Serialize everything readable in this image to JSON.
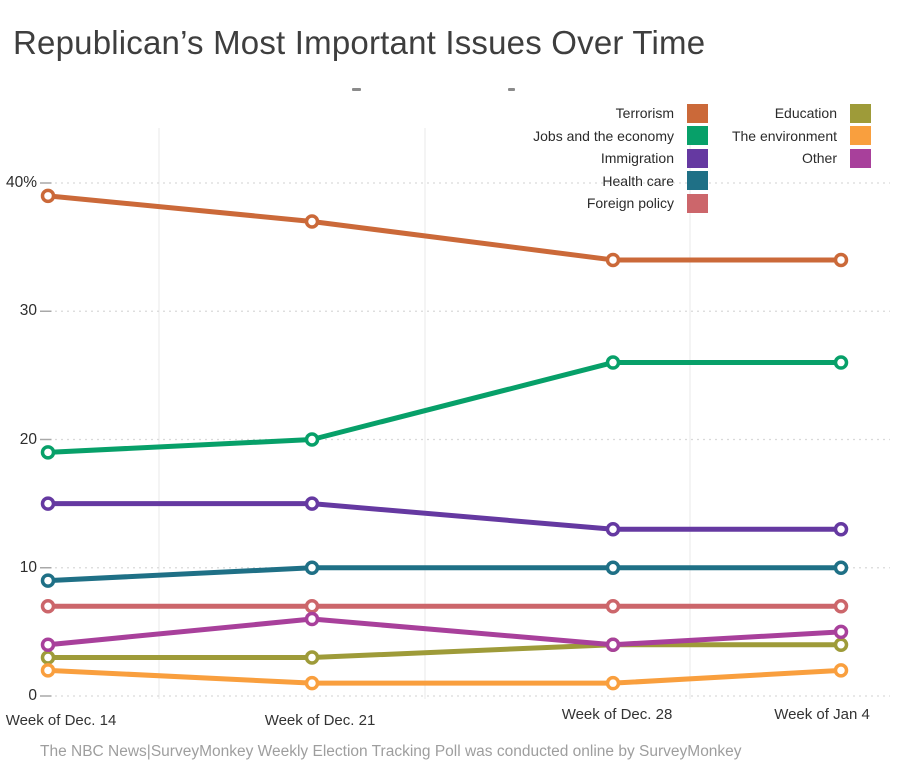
{
  "title": "Republican’s Most Important Issues Over Time",
  "footer": "The NBC News|SurveyMonkey Weekly Election Tracking Poll was conducted online by SurveyMonkey",
  "chart_data": {
    "type": "line",
    "x": [
      "Week of Dec. 14",
      "Week of Dec. 21",
      "Week of Dec. 28",
      "Week of Jan 4"
    ],
    "y_axis": {
      "ticks": [
        0,
        10,
        20,
        30,
        40
      ],
      "tick_labels": [
        "0",
        "10",
        "20",
        "30",
        "40%"
      ],
      "ylim": [
        0,
        42
      ],
      "unit": "percent of respondents"
    },
    "series": [
      {
        "name": "Terrorism",
        "color": "#cb6939",
        "values": [
          39,
          37,
          34,
          34
        ]
      },
      {
        "name": "Jobs and the economy",
        "color": "#07a069",
        "values": [
          19,
          20,
          26,
          26
        ]
      },
      {
        "name": "Immigration",
        "color": "#6539a1",
        "values": [
          15,
          15,
          13,
          13
        ]
      },
      {
        "name": "Health care",
        "color": "#1f7086",
        "values": [
          9,
          10,
          10,
          10
        ]
      },
      {
        "name": "Foreign policy",
        "color": "#cc666b",
        "values": [
          7,
          7,
          7,
          7
        ]
      },
      {
        "name": "Education",
        "color": "#9e9b39",
        "values": [
          3,
          3,
          4,
          4
        ]
      },
      {
        "name": "The environment",
        "color": "#f99f3e",
        "values": [
          2,
          1,
          1,
          2
        ]
      },
      {
        "name": "Other",
        "color": "#a8409b",
        "values": [
          4,
          6,
          4,
          5
        ]
      }
    ],
    "legend": {
      "position": "top-right",
      "columns": [
        [
          "Terrorism",
          "Jobs and the economy",
          "Immigration",
          "Health care",
          "Foreign policy"
        ],
        [
          "Education",
          "The environment",
          "Other"
        ]
      ]
    },
    "grid": {
      "horizontal": "dashed",
      "vertical": "light-solid"
    },
    "marker": "open-circle"
  }
}
